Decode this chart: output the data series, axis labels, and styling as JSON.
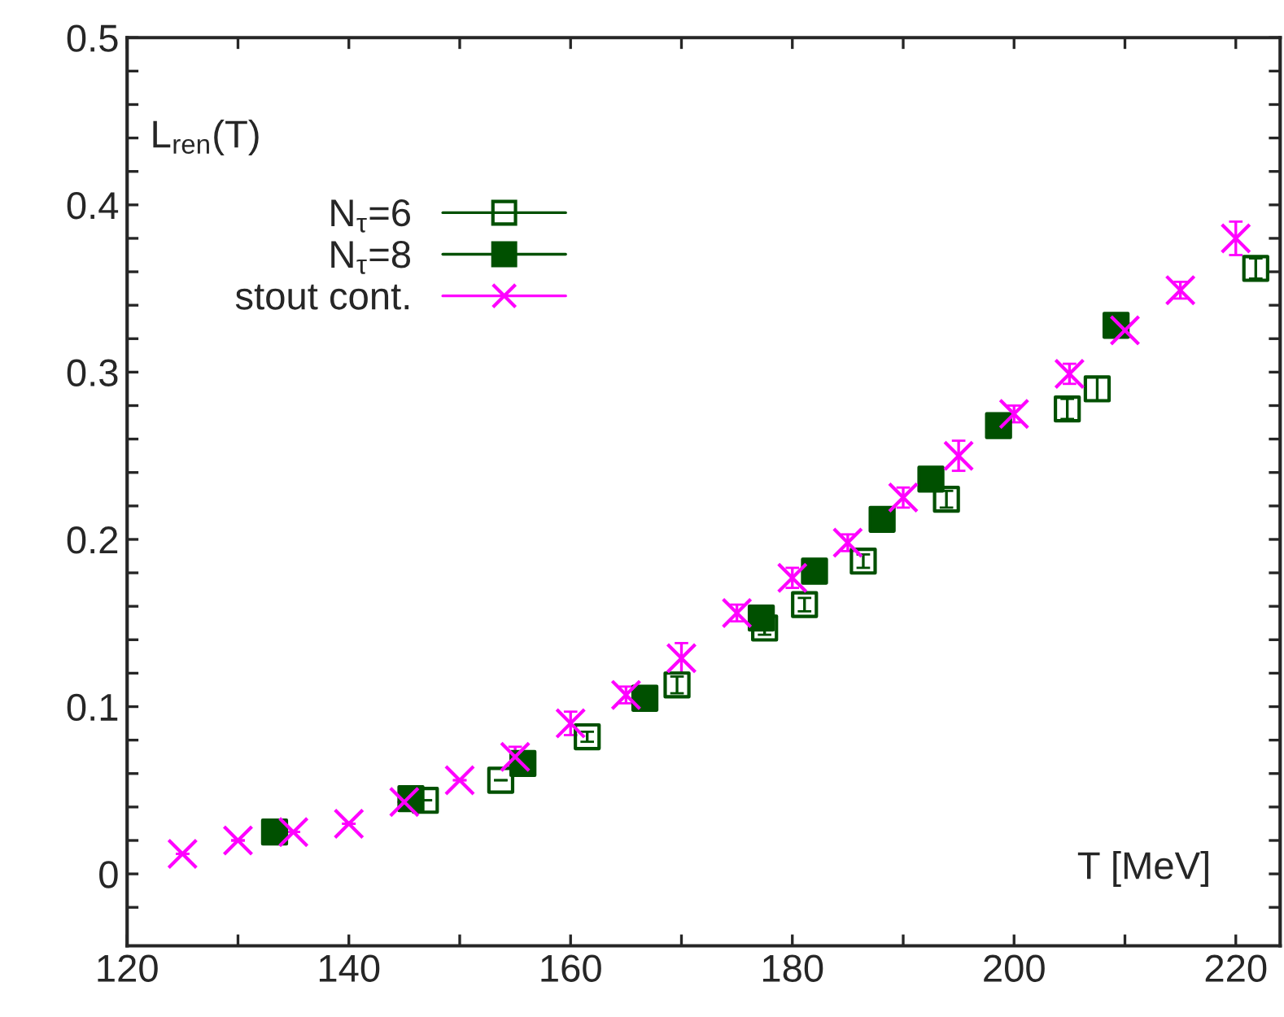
{
  "chart_data": {
    "type": "scatter",
    "xlabel": "T [MeV]",
    "ylabel": "L$_{ren}$(T)",
    "xlim": [
      120,
      224
    ],
    "ylim": [
      -0.043,
      0.5
    ],
    "xticks": [
      120,
      {
        "value": 130,
        "label": null
      },
      140,
      {
        "value": 150,
        "label": null
      },
      160,
      {
        "value": 170,
        "label": null
      },
      180,
      {
        "value": 190,
        "label": null
      },
      200,
      {
        "value": 210,
        "label": null
      },
      220
    ],
    "yticks": [
      {
        "value": -0.02,
        "label": null
      },
      0,
      {
        "value": 0.02,
        "label": null
      },
      {
        "value": 0.04,
        "label": null
      },
      {
        "value": 0.06,
        "label": null
      },
      {
        "value": 0.08,
        "label": null
      },
      0.1,
      {
        "value": 0.12,
        "label": null
      },
      {
        "value": 0.14,
        "label": null
      },
      {
        "value": 0.16,
        "label": null
      },
      {
        "value": 0.18,
        "label": null
      },
      0.2,
      {
        "value": 0.22,
        "label": null
      },
      {
        "value": 0.24,
        "label": null
      },
      {
        "value": 0.26,
        "label": null
      },
      {
        "value": 0.28,
        "label": null
      },
      0.3,
      {
        "value": 0.32,
        "label": null
      },
      {
        "value": 0.34,
        "label": null
      },
      {
        "value": 0.36,
        "label": null
      },
      {
        "value": 0.38,
        "label": null
      },
      0.4,
      {
        "value": 0.42,
        "label": null
      },
      {
        "value": 0.44,
        "label": null
      },
      {
        "value": 0.46,
        "label": null
      },
      {
        "value": 0.48,
        "label": null
      },
      0.5
    ],
    "grid": false,
    "legend": "top left",
    "series": [
      {
        "name": "N$_{τ}$=6",
        "color": "#005000",
        "marker": "square",
        "x": [
          146.9,
          153.7,
          161.5,
          169.6,
          177.5,
          181.1,
          186.4,
          193.9,
          204.8,
          207.5,
          221.8
        ],
        "values": [
          0.044,
          0.056,
          0.082,
          0.113,
          0.147,
          0.161,
          0.187,
          0.224,
          0.278,
          0.29,
          0.362
        ],
        "errors": [
          null,
          null,
          0.003,
          0.005,
          0.004,
          0.004,
          0.004,
          0.005,
          0.006,
          0.007,
          0.006
        ]
      },
      {
        "name": "N$_{τ}$=8",
        "color": "#005000",
        "marker": "square",
        "x": [
          133.3,
          145.6,
          155.7,
          166.7,
          177.2,
          182.0,
          188.1,
          192.5,
          198.6,
          209.2
        ],
        "values": [
          0.025,
          0.045,
          0.066,
          0.105,
          0.153,
          0.181,
          0.212,
          0.236,
          0.268,
          0.328
        ]
      },
      {
        "name": "stout cont.",
        "color": "#ff00ff",
        "marker": "cross",
        "x": [
          125,
          130,
          135,
          140,
          145,
          150,
          155,
          160,
          165,
          170,
          175,
          180,
          185,
          190,
          195,
          200,
          205,
          210,
          215,
          220
        ],
        "values": [
          0.012,
          0.02,
          0.025,
          0.03,
          0.043,
          0.056,
          0.07,
          0.09,
          0.107,
          0.129,
          0.156,
          0.177,
          0.198,
          0.225,
          0.25,
          0.275,
          0.299,
          0.325,
          0.349,
          0.38
        ],
        "errors": [
          null,
          null,
          null,
          null,
          null,
          null,
          0.006,
          0.007,
          0.005,
          0.009,
          0.005,
          0.006,
          0.005,
          0.006,
          0.009,
          0.005,
          0.006,
          0.004,
          0.005,
          0.01
        ]
      }
    ]
  }
}
